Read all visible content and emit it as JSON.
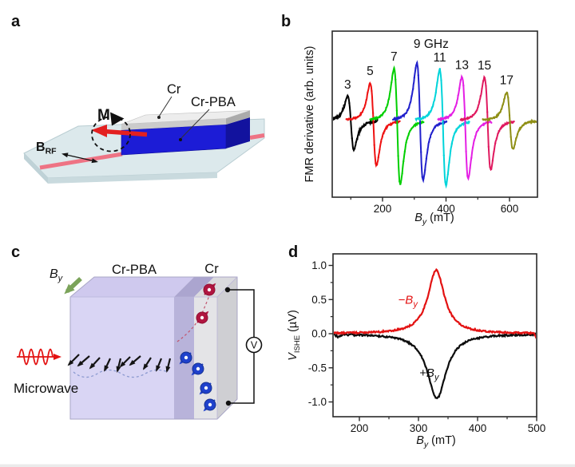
{
  "figure": {
    "panels": {
      "a": {
        "label": "a",
        "m_label": "M",
        "b_rf": {
          "main": "B",
          "sub": "RF"
        },
        "cr_label": "Cr",
        "crpba_label": "Cr-PBA",
        "colors": {
          "crpba_layer": "#1c1cd6",
          "cr_layer": "#ededed",
          "substrate": "#dce9ec",
          "stripline": "#ee7384",
          "magnetization_arrow": "#e32020"
        }
      },
      "b": {
        "label": "b"
      },
      "c": {
        "label": "c",
        "by": {
          "main": "B",
          "sub": "y"
        },
        "crpba_label": "Cr-PBA",
        "cr_label": "Cr",
        "microwave_label": "Microwave",
        "voltmeter_label": "V",
        "colors": {
          "crpba_box": "#d9d5f4",
          "cr_box": "#e4e4e7",
          "field_arrow": "#7ba35a",
          "microwave": "#e31212",
          "spin_up": "#b01540",
          "spin_down": "#1f41cc"
        }
      },
      "d": {
        "label": "d"
      }
    }
  },
  "chart_data": [
    {
      "id": "fmr-spectra",
      "type": "line",
      "title": "",
      "xlabel_parts": {
        "main": "B",
        "sub": "y",
        "unit": " (mT)"
      },
      "ylabel": "FMR derivative (arb. units)",
      "xlim": [
        40,
        690
      ],
      "x_major_ticks": [
        200,
        400,
        600
      ],
      "x_minor_ticks": [
        100,
        300,
        500
      ],
      "y_axis": "unlabeled (arbitrary units)",
      "legend": "none (curves labeled by microwave frequency in GHz)",
      "series": [
        {
          "label": "3",
          "frequency_GHz": 3,
          "color": "#000000",
          "resonance_mT": 100,
          "linewidth_mT": 17,
          "amp_up": 0.42,
          "amp_down": 0.5
        },
        {
          "label": "5",
          "frequency_GHz": 5,
          "color": "#ee1111",
          "resonance_mT": 171,
          "linewidth_mT": 17,
          "amp_up": 0.65,
          "amp_down": 0.78
        },
        {
          "label": "7",
          "frequency_GHz": 7,
          "color": "#00cf00",
          "resonance_mT": 246,
          "linewidth_mT": 17,
          "amp_up": 0.9,
          "amp_down": 1.11
        },
        {
          "label": "9 GHz",
          "frequency_GHz": 9,
          "color": "#2121cc",
          "resonance_mT": 318,
          "linewidth_mT": 17,
          "amp_up": 1.0,
          "amp_down": 1.04,
          "label_offset": [
            18,
            -9
          ]
        },
        {
          "label": "11",
          "frequency_GHz": 11,
          "color": "#00d4da",
          "resonance_mT": 390,
          "linewidth_mT": 17,
          "amp_up": 0.89,
          "amp_down": 1.13
        },
        {
          "label": "13",
          "frequency_GHz": 13,
          "color": "#e41fe4",
          "resonance_mT": 460,
          "linewidth_mT": 17,
          "amp_up": 0.76,
          "amp_down": 1.01
        },
        {
          "label": "15",
          "frequency_GHz": 15,
          "color": "#e0195f",
          "resonance_mT": 531,
          "linewidth_mT": 17,
          "amp_up": 0.75,
          "amp_down": 0.85
        },
        {
          "label": "17",
          "frequency_GHz": 17,
          "color": "#8f8f16",
          "resonance_mT": 601,
          "linewidth_mT": 17,
          "amp_up": 0.49,
          "amp_down": 0.5
        }
      ]
    },
    {
      "id": "ishe-voltage",
      "type": "line",
      "title": "",
      "xlabel_parts": {
        "main": "B",
        "sub": "y",
        "unit": " (mT)"
      },
      "ylabel_parts": {
        "main": "V",
        "sub": "ISHE",
        "unit": " (µV)"
      },
      "xlim": [
        152,
        500
      ],
      "ylim": [
        -1.2,
        1.2
      ],
      "x_major_ticks": [
        200,
        300,
        400,
        500
      ],
      "x_minor_ticks": [
        250,
        350,
        450
      ],
      "y_major_ticks": [
        {
          "v": 1.0,
          "label": "1.0"
        },
        {
          "v": 0.5,
          "label": "0.5"
        },
        {
          "v": 0.0,
          "label": "0.0"
        },
        {
          "v": -0.5,
          "label": "-0.5"
        },
        {
          "v": -1.0,
          "label": "-1.0"
        }
      ],
      "y_minor_ticks": [
        0.75,
        0.25,
        -0.25,
        -0.75
      ],
      "series": [
        {
          "name": "+By",
          "label_main": "+B",
          "label_sub": "y",
          "color": "#0d0d0d",
          "peak_mT": 331,
          "amplitude_uV": -0.95,
          "hwhm_mT": 19,
          "label_B_mT": 318,
          "label_v_uV": -0.63,
          "artifact": "small dip near 165 mT"
        },
        {
          "name": "-By",
          "label_main": "−B",
          "label_sub": "y",
          "color": "#e31212",
          "peak_mT": 330,
          "amplitude_uV": 0.93,
          "hwhm_mT": 17,
          "label_B_mT": 282,
          "label_v_uV": 0.44,
          "artifact": "downturn at 500 mT"
        }
      ]
    }
  ]
}
